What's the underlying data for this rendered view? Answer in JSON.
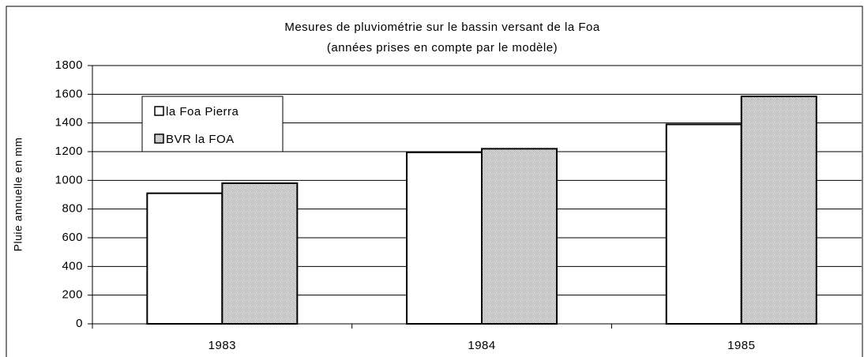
{
  "chart_data": {
    "type": "bar",
    "title": "Mesures de pluviométrie sur le bassin versant de la Foa",
    "subtitle": "(années prises en compte par le modèle)",
    "y_label": "Pluie annuelle en mm",
    "categories": [
      "1983",
      "1984",
      "1985"
    ],
    "series": [
      {
        "name": "la Foa Pierra",
        "color": "#ffffff",
        "values": [
          910,
          1195,
          1390
        ]
      },
      {
        "name": "BVR la FOA",
        "color": "#d6d6d6",
        "values": [
          980,
          1220,
          1585
        ]
      }
    ],
    "ylim": [
      0,
      1800
    ],
    "yticks": [
      0,
      200,
      400,
      600,
      800,
      1000,
      1200,
      1400,
      1600,
      1800
    ],
    "grid": true,
    "legend": "upper left"
  }
}
